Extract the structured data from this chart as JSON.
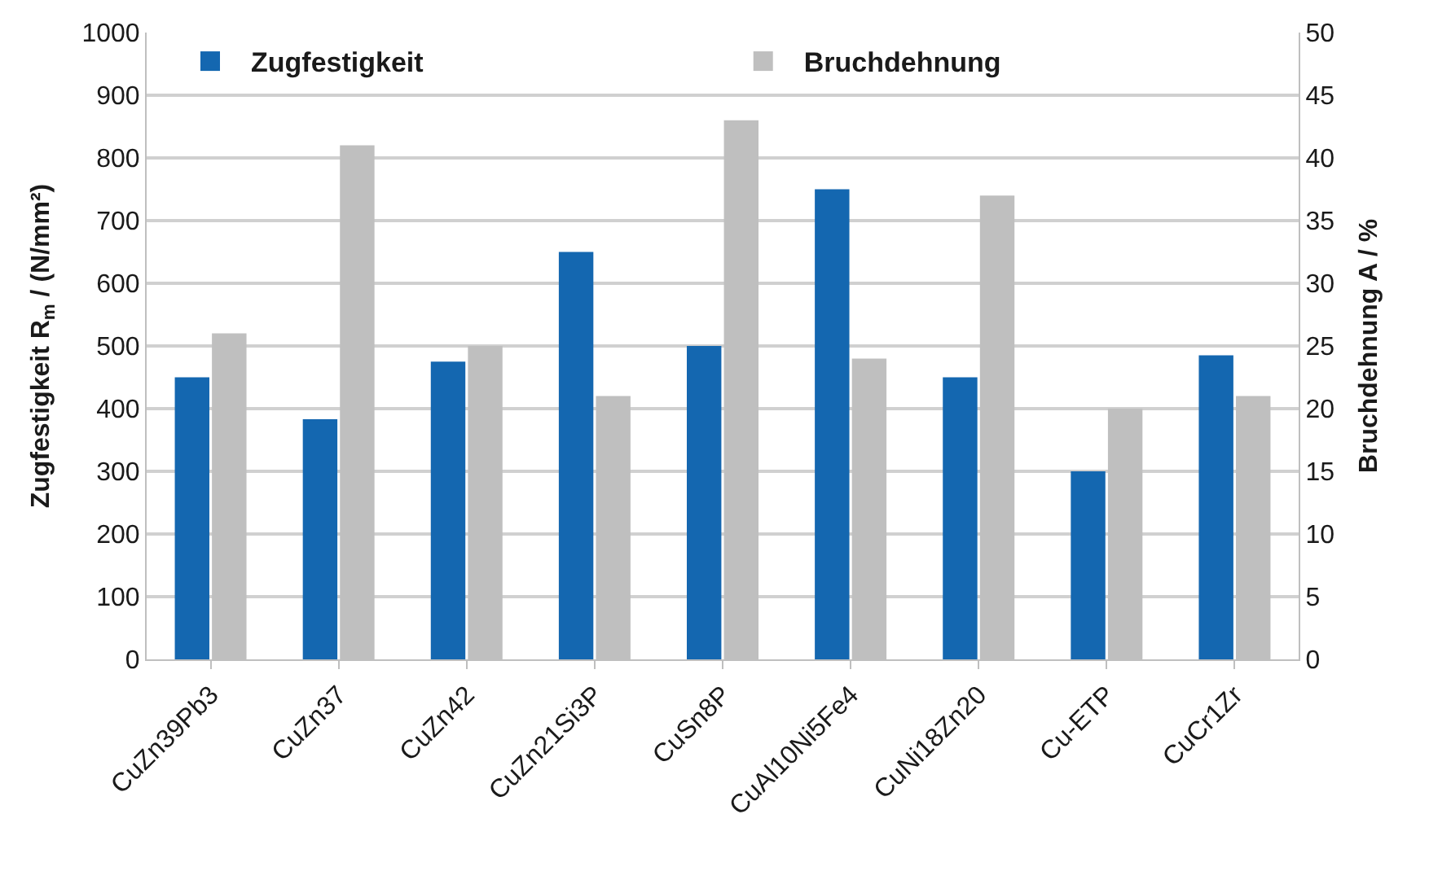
{
  "chart_data": {
    "type": "bar",
    "categories": [
      "CuZn39Pb3",
      "CuZn37",
      "CuZn42",
      "CuZn21Si3P",
      "CuSn8P",
      "CuAl10Ni5Fe4",
      "CuNi18Zn20",
      "Cu-ETP",
      "CuCr1Zr"
    ],
    "series": [
      {
        "name": "Zugfestigkeit",
        "color": "#1467b0",
        "values": [
          450,
          383,
          475,
          650,
          500,
          750,
          450,
          300,
          485
        ]
      },
      {
        "name": "Bruchdehnung",
        "color": "#bfbfbf",
        "axis": "y2",
        "values": [
          26,
          41,
          25,
          21,
          43,
          24,
          37,
          20,
          21
        ]
      }
    ],
    "ylabel": "Zugfestigkeit R$_{m}$ / (N/mm²)",
    "y2label": "Bruchdehnung A / %",
    "ylim": [
      0,
      1000
    ],
    "yticks": [
      0,
      100,
      200,
      300,
      400,
      500,
      600,
      700,
      800,
      900,
      1000
    ],
    "y2lim": [
      0,
      50
    ],
    "y2ticks": [
      0,
      5,
      10,
      15,
      20,
      25,
      30,
      35,
      40,
      45,
      50
    ],
    "grid": "y",
    "legend": "top"
  }
}
